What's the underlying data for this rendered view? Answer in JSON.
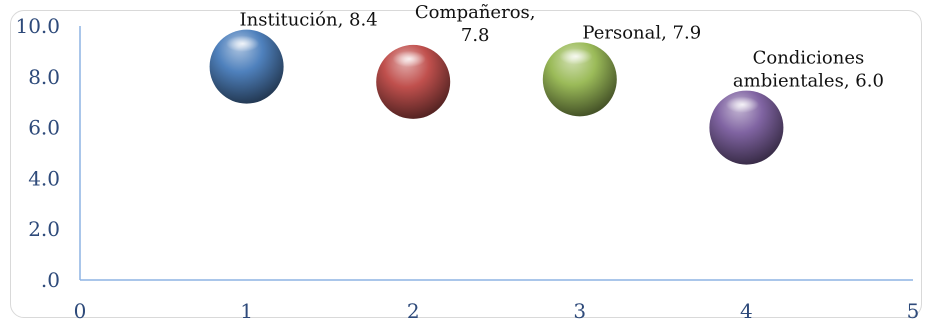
{
  "chart_data": {
    "type": "bubble",
    "title": "",
    "xlabel": "",
    "ylabel": "",
    "xlim": [
      0,
      5
    ],
    "ylim": [
      0,
      10
    ],
    "x_ticks": [
      "0",
      "1",
      "2",
      "3",
      "4",
      "5"
    ],
    "y_ticks": [
      ".0",
      "2.0",
      "4.0",
      "6.0",
      "8.0",
      "10.0"
    ],
    "grid": false,
    "legend": "none",
    "points": [
      {
        "label_lines": [
          "Institución, 8.4"
        ],
        "x": 1,
        "y": 8.4,
        "color": "#4f81bd"
      },
      {
        "label_lines": [
          "Compañeros,",
          "7.8"
        ],
        "x": 2,
        "y": 7.8,
        "color": "#c0504d"
      },
      {
        "label_lines": [
          "Personal, 7.9"
        ],
        "x": 3,
        "y": 7.9,
        "color": "#9bbb59"
      },
      {
        "label_lines": [
          "Condiciones",
          "ambientales, 6.0"
        ],
        "x": 4,
        "y": 6.0,
        "color": "#8064a2"
      }
    ]
  }
}
